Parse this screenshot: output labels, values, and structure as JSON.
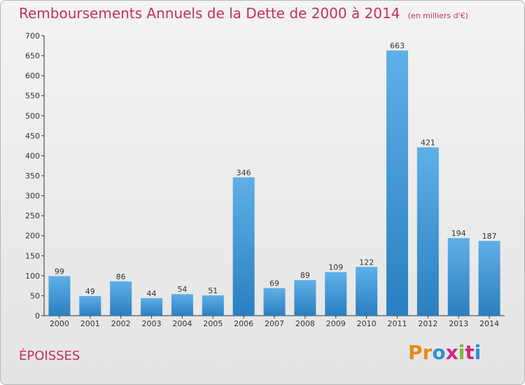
{
  "header": {
    "title": "Remboursements Annuels de la Dette de 2000 à 2014",
    "subtitle": "(en milliers d'€)"
  },
  "footer": {
    "commune": "ÉPOISSES",
    "logo_text": "Proxiti"
  },
  "colors": {
    "title": "#c4305a",
    "bar_top": "#5fb0e8",
    "bar_bottom": "#2a7fc0",
    "logo_letters": [
      "#e8891a",
      "#e8891a",
      "#2f8fd6",
      "#cc2b86",
      "#7dbb2e",
      "#cc2b86",
      "#2f8fd6"
    ]
  },
  "chart_data": {
    "type": "bar",
    "title": "Remboursements Annuels de la Dette de 2000 à 2014",
    "subtitle": "(en milliers d'€)",
    "categories": [
      "2000",
      "2001",
      "2002",
      "2003",
      "2004",
      "2005",
      "2006",
      "2007",
      "2008",
      "2009",
      "2010",
      "2011",
      "2012",
      "2013",
      "2014"
    ],
    "values": [
      99,
      49,
      86,
      44,
      54,
      51,
      346,
      69,
      89,
      109,
      122,
      663,
      421,
      194,
      187
    ],
    "ylim": [
      0,
      700
    ],
    "yticks": [
      0,
      50,
      100,
      150,
      200,
      250,
      300,
      350,
      400,
      450,
      500,
      550,
      600,
      650,
      700
    ],
    "grid": false,
    "data_labels": true
  }
}
